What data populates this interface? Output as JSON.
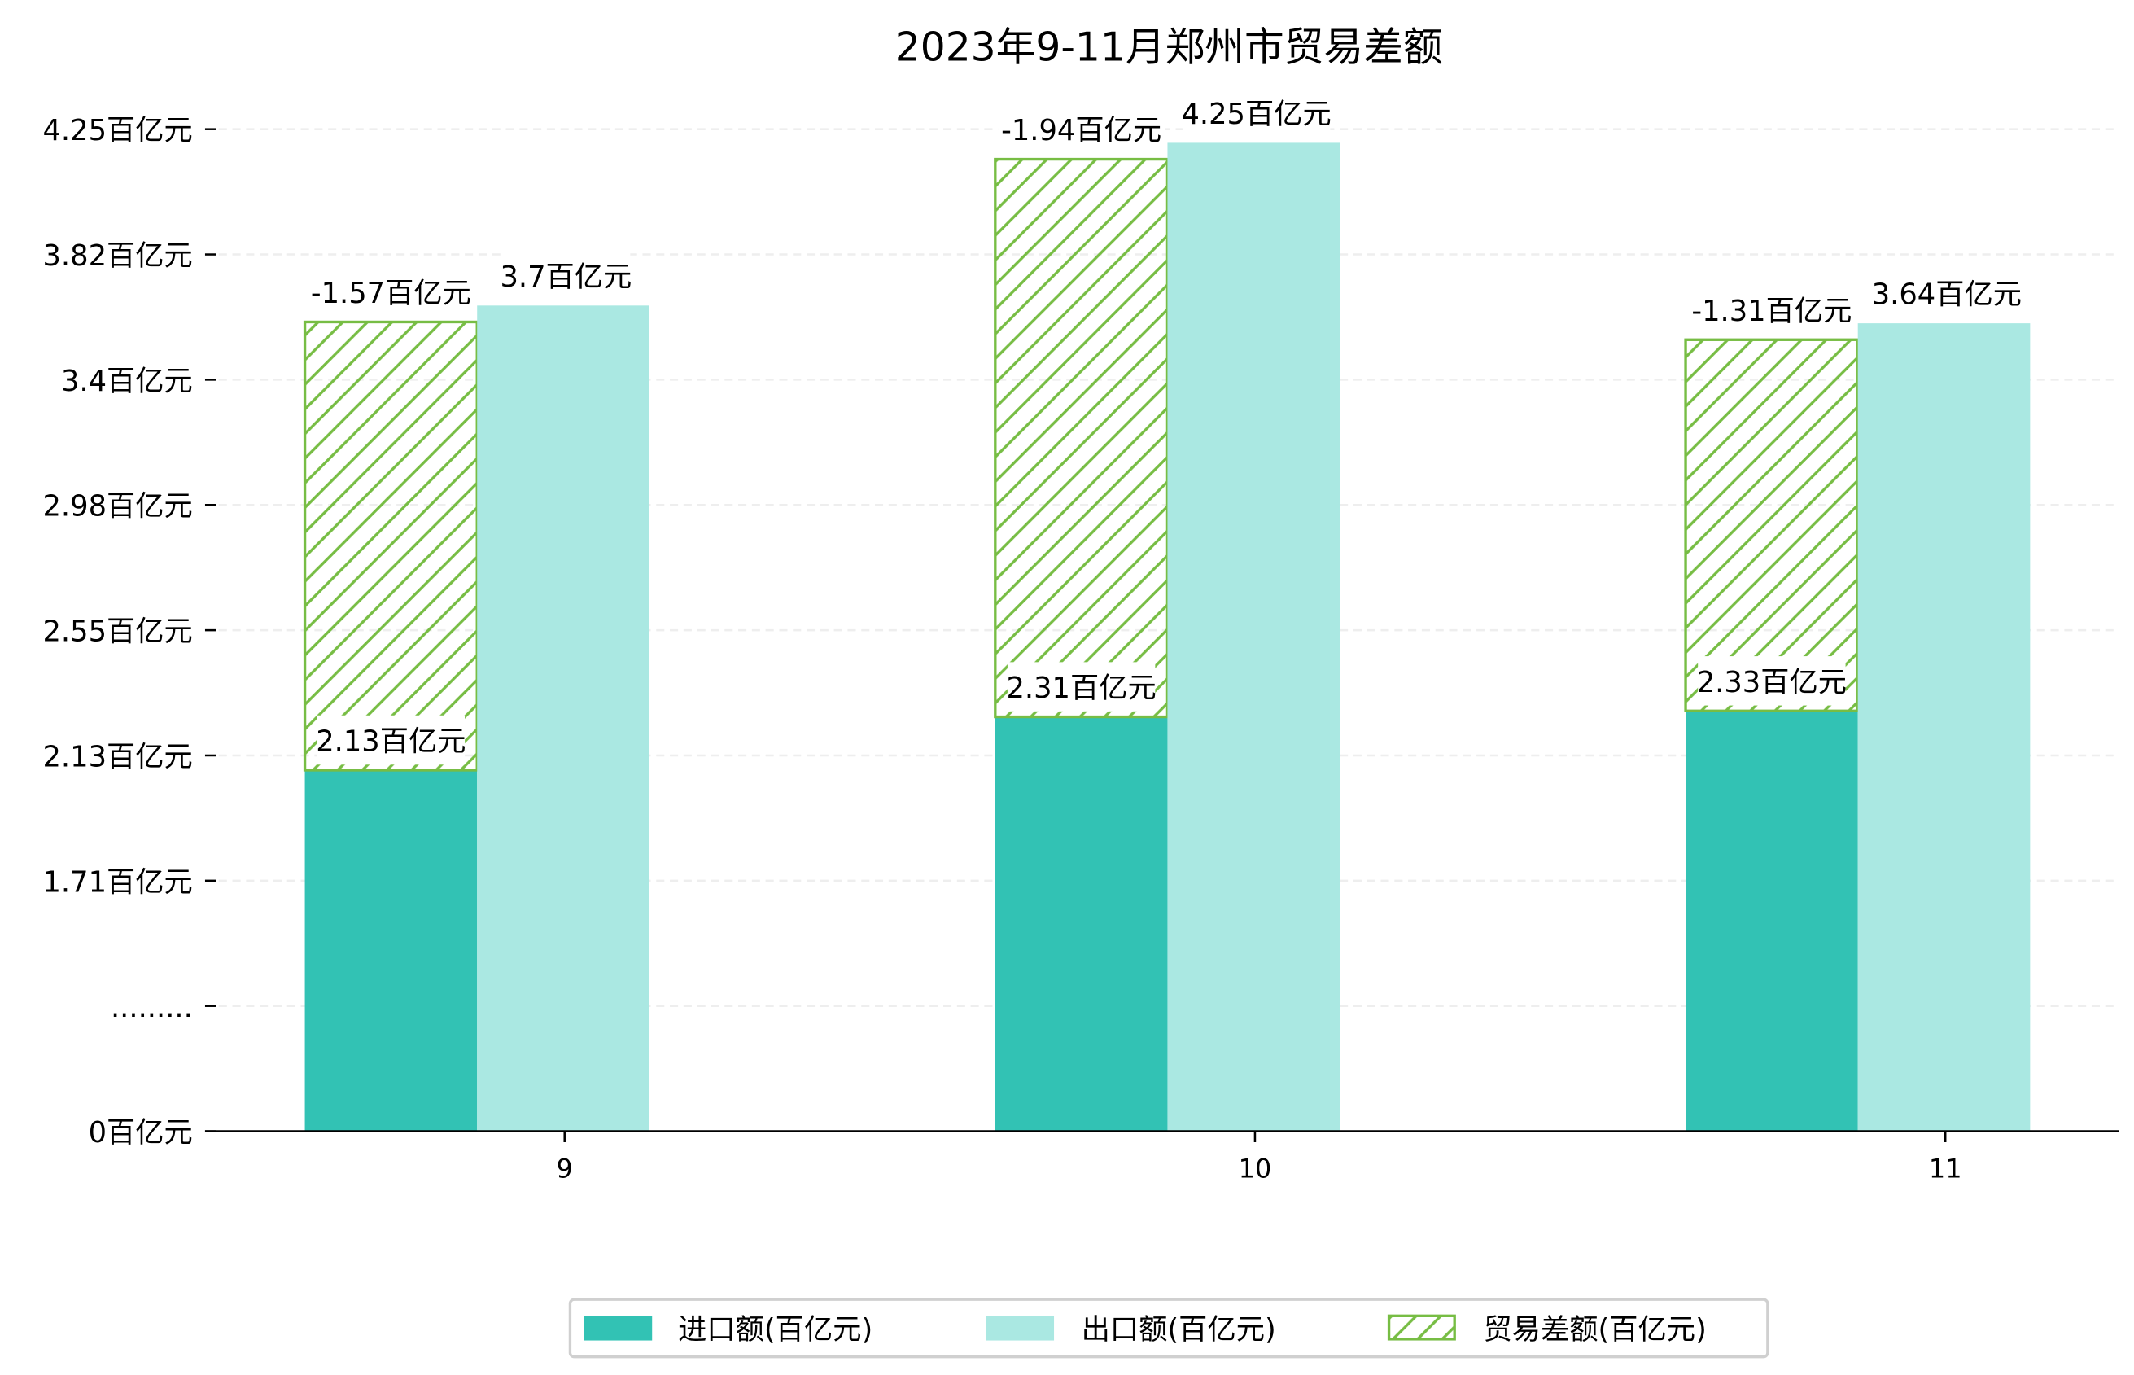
{
  "chart_data": {
    "type": "bar",
    "title": "2023年9-11月郑州市贸易差额",
    "xlabel": "",
    "ylabel": "",
    "categories": [
      "9",
      "10",
      "11"
    ],
    "series": [
      {
        "name": "进口额(百亿元)",
        "values": [
          2.13,
          2.31,
          2.33
        ],
        "labels": [
          "2.13百亿元",
          "2.31百亿元",
          "2.33百亿元"
        ],
        "color": "#32c2b4"
      },
      {
        "name": "出口额(百亿元)",
        "values": [
          3.7,
          4.25,
          3.64
        ],
        "labels": [
          "3.7百亿元",
          "4.25百亿元",
          "3.64百亿元"
        ],
        "color": "#aae8e2"
      },
      {
        "name": "贸易差额(百亿元)",
        "values": [
          -1.57,
          -1.94,
          -1.31
        ],
        "labels": [
          "-1.57百亿元",
          "-1.94百亿元",
          "-1.31百亿元"
        ],
        "color": "#77bd44",
        "style": "hatched"
      }
    ],
    "yticks": [
      {
        "value": 0,
        "label": "0百亿元"
      },
      {
        "value": null,
        "label": "........."
      },
      {
        "value": 1.71,
        "label": "1.71百亿元"
      },
      {
        "value": 2.13,
        "label": "2.13百亿元"
      },
      {
        "value": 2.55,
        "label": "2.55百亿元"
      },
      {
        "value": 2.98,
        "label": "2.98百亿元"
      },
      {
        "value": 3.4,
        "label": "3.4百亿元"
      },
      {
        "value": 3.82,
        "label": "3.82百亿元"
      },
      {
        "value": 4.25,
        "label": "4.25百亿元"
      }
    ],
    "ylim": [
      0,
      4.25
    ],
    "axis_break": true,
    "grid": true,
    "legend_position": "bottom-center"
  }
}
